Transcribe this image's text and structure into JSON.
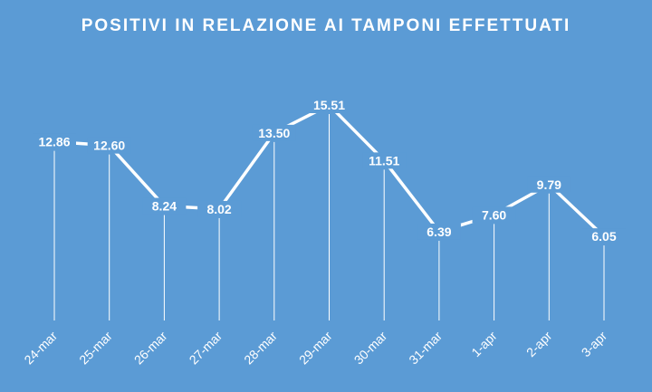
{
  "chart_data": {
    "type": "line",
    "title": "POSITIVI IN RELAZIONE AI TAMPONI EFFETTUATI",
    "categories": [
      "24-mar",
      "25-mar",
      "26-mar",
      "27-mar",
      "28-mar",
      "29-mar",
      "30-mar",
      "31-mar",
      "1-apr",
      "2-apr",
      "3-apr"
    ],
    "series": [
      {
        "values": [
          12.86,
          12.6,
          8.24,
          8.02,
          13.5,
          15.51,
          11.51,
          6.39,
          7.6,
          9.79,
          6.05
        ],
        "data_labels": [
          "12.86",
          "12.60",
          "8.24",
          "8.02",
          "13.50",
          "15.51",
          "11.51",
          "6.39",
          "7.60",
          "9.79",
          "6.05"
        ]
      }
    ],
    "xlabel": "",
    "ylabel": "",
    "drop_lines": true,
    "grid": false,
    "legend": "none",
    "colors": {
      "background": "#5b9bd5",
      "line": "#ffffff",
      "text": "#ffffff"
    }
  }
}
